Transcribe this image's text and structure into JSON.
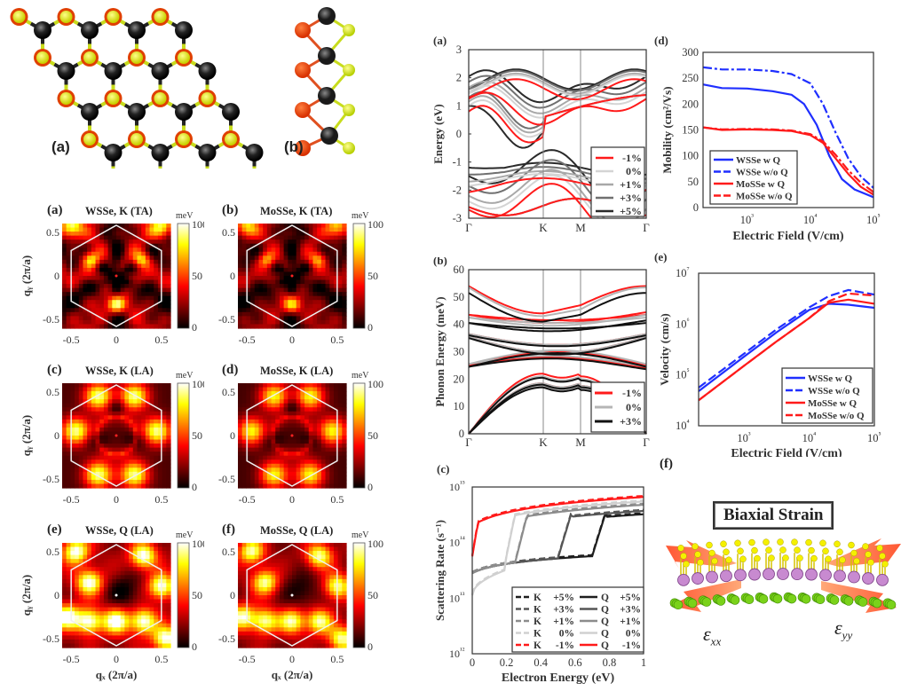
{
  "figure": {
    "left_panels": {
      "structure_a_label": "(a)",
      "structure_b_label": "(b)",
      "structure_legend": {
        "atom_types": [
          "metal (black)",
          "S (yellow)",
          "Se (orange)"
        ]
      },
      "heatmaps": [
        {
          "label": "(a)",
          "title": "WSSe, K (TA)",
          "pattern": "ta",
          "seed": 1
        },
        {
          "label": "(b)",
          "title": "MoSSe, K (TA)",
          "pattern": "ta",
          "seed": 2
        },
        {
          "label": "(c)",
          "title": "WSSe, K (LA)",
          "pattern": "la",
          "seed": 3
        },
        {
          "label": "(d)",
          "title": "MoSSe, K (LA)",
          "pattern": "la",
          "seed": 4
        },
        {
          "label": "(e)",
          "title": "WSSe, Q (LA)",
          "pattern": "q",
          "seed": 5
        },
        {
          "label": "(f)",
          "title": "MoSSe, Q (LA)",
          "pattern": "q",
          "seed": 6
        }
      ],
      "heatmap_colorbar": {
        "unit": "meV",
        "ticks": [
          "100",
          "50",
          "0"
        ],
        "range": [
          0,
          100
        ]
      },
      "heatmap_ticks": [
        "-0.5",
        "0",
        "0.5"
      ],
      "heatmap_ylabel": "q_y (2π/a)",
      "heatmap_xlabel": "q_x (2π/a)"
    },
    "right_panel_f": {
      "label": "(f)",
      "title": "Biaxial Strain",
      "strain_x": "ε",
      "strain_x_sub": "xx",
      "strain_y": "ε",
      "strain_y_sub": "yy"
    }
  },
  "chart_data": [
    {
      "id": "a",
      "label": "(a)",
      "type": "line",
      "title": "",
      "xlabel": "",
      "ylabel": "Energy (eV)",
      "ylim": [
        -3,
        3
      ],
      "yticks": [
        "3",
        "2",
        "1",
        "0",
        "-1",
        "-2",
        "-3"
      ],
      "xticks": [
        "Γ",
        "K",
        "M",
        "Γ"
      ],
      "kpath_positions": [
        0,
        0.42,
        0.63,
        1.0
      ],
      "legend": [
        "-1%",
        "0%",
        "+1%",
        "+3%",
        "+5%"
      ],
      "legend_position": "lower-right",
      "series": [
        {
          "name": "-1%",
          "color": "#ff1a1a",
          "cb_min": 0.0,
          "cb_K": 1.1,
          "cb_peak": 2.05,
          "vb_max": -1.65,
          "vb_G": -1.8
        },
        {
          "name": "0%",
          "color": "#d4d4d4",
          "cb_min": 0.2,
          "cb_K": 1.35,
          "cb_peak": 2.2,
          "vb_max": -1.5,
          "vb_G": -1.5
        },
        {
          "name": "+1%",
          "color": "#a8a8a8",
          "cb_min": 0.35,
          "cb_K": 1.5,
          "cb_peak": 2.25,
          "vb_max": -1.4,
          "vb_G": -1.3
        },
        {
          "name": "+3%",
          "color": "#707070",
          "cb_min": 0.5,
          "cb_K": 1.7,
          "cb_peak": 2.35,
          "vb_max": -1.25,
          "vb_G": -0.95
        },
        {
          "name": "+5%",
          "color": "#2a2a2a",
          "cb_min": 0.0,
          "cb_K": 1.9,
          "cb_peak": 2.4,
          "vb_max": -1.1,
          "vb_G": -0.6
        }
      ]
    },
    {
      "id": "b",
      "label": "(b)",
      "type": "line",
      "xlabel": "",
      "ylabel": "Phonon Energy (meV)",
      "ylim": [
        0,
        60
      ],
      "yticks": [
        "60",
        "50",
        "40",
        "30",
        "20",
        "10",
        "0"
      ],
      "xticks": [
        "Γ",
        "K",
        "M",
        "Γ"
      ],
      "kpath_positions": [
        0,
        0.42,
        0.63,
        1.0
      ],
      "legend": [
        "-1%",
        "0%",
        "+3%"
      ],
      "legend_position": "lower-right",
      "series": [
        {
          "name": "-1%",
          "color": "#ff1a1a",
          "top_G": 54,
          "top_K": 44,
          "top_M": 47,
          "acoustic_K": [
            17.5,
            18.5,
            22
          ],
          "optical": [
            43.5,
            35.5,
            25
          ]
        },
        {
          "name": "0%",
          "color": "#b5b5b5",
          "top_G": 53.5,
          "top_K": 43,
          "top_M": 45.5,
          "acoustic_K": [
            17.5,
            18.5,
            21
          ],
          "optical": [
            42.5,
            35.5,
            25.5
          ]
        },
        {
          "name": "+3%",
          "color": "#111111",
          "top_G": 51.5,
          "top_K": 41,
          "top_M": 43.5,
          "acoustic_K": [
            17,
            18,
            20.5
          ],
          "optical": [
            40.5,
            35,
            24.5
          ]
        }
      ]
    },
    {
      "id": "c",
      "label": "(c)",
      "type": "line",
      "xlabel": "Electron Energy (eV)",
      "ylabel": "Scattering Rate (s⁻¹)",
      "xlim": [
        0,
        1
      ],
      "ylim_log10": [
        12,
        15
      ],
      "xticks": [
        "0",
        "0.2",
        "0.4",
        "0.6",
        "0.8",
        "1"
      ],
      "yticks": [
        "10¹⁵",
        "10¹⁴",
        "10¹³",
        "10¹²"
      ],
      "legend": [
        "K +5%",
        "K +3%",
        "K +1%",
        "K 0%",
        "K -1%",
        "Q +5%",
        "Q +3%",
        "Q +1%",
        "Q 0%",
        "Q -1%"
      ],
      "legend_position": "lower-right",
      "series": [
        {
          "name": "+5%",
          "color": "#1e1e1e",
          "jump_start": 0.7,
          "jump_end": 0.78
        },
        {
          "name": "+3%",
          "color": "#555555",
          "jump_start": 0.5,
          "jump_end": 0.58
        },
        {
          "name": "+1%",
          "color": "#8c8c8c",
          "jump_start": 0.25,
          "jump_end": 0.32
        },
        {
          "name": "0%",
          "color": "#d0d0d0",
          "jump_start": 0.19,
          "jump_end": 0.25
        },
        {
          "name": "-1%",
          "color": "#ff1a1a",
          "jump_start": 0.0,
          "jump_end": 0.03
        }
      ]
    },
    {
      "id": "d",
      "label": "(d)",
      "type": "line",
      "xlabel": "Electric Field (V/cm)",
      "ylabel": "Mobility (cm²/Vs)",
      "xlim_log10": [
        2.3,
        5
      ],
      "ylim": [
        0,
        300
      ],
      "xticks": [
        "10³",
        "10⁴",
        "10⁵"
      ],
      "yticks": [
        "300",
        "250",
        "200",
        "150",
        "100",
        "50",
        "0"
      ],
      "legend": [
        "WSSe w Q",
        "WSSe w/o Q",
        "MoSSe w Q",
        "MoSSe w/o Q"
      ],
      "legend_position": "lower-left",
      "series": [
        {
          "name": "WSSe w Q",
          "color": "#1f2fff",
          "dash": false,
          "x_log10": [
            2.3,
            2.6,
            3.0,
            3.4,
            3.7,
            3.9,
            4.1,
            4.3,
            4.5,
            4.7,
            5.0
          ],
          "y": [
            238,
            231,
            230,
            225,
            218,
            200,
            160,
            100,
            55,
            35,
            20
          ]
        },
        {
          "name": "WSSe w/o Q",
          "color": "#1f2fff",
          "dash": true,
          "x_log10": [
            2.3,
            2.6,
            3.0,
            3.4,
            3.7,
            4.0,
            4.2,
            4.4,
            4.6,
            4.8,
            5.0
          ],
          "y": [
            271,
            267,
            267,
            264,
            258,
            240,
            200,
            145,
            95,
            60,
            38
          ]
        },
        {
          "name": "MoSSe w Q",
          "color": "#ff1a1a",
          "dash": false,
          "x_log10": [
            2.3,
            2.6,
            3.0,
            3.4,
            3.7,
            4.0,
            4.2,
            4.4,
            4.6,
            4.8,
            5.0
          ],
          "y": [
            155,
            150,
            151,
            150,
            148,
            140,
            125,
            95,
            65,
            40,
            25
          ]
        },
        {
          "name": "MoSSe w/o Q",
          "color": "#ff1a1a",
          "dash": true,
          "x_log10": [
            2.3,
            2.6,
            3.0,
            3.4,
            3.7,
            4.0,
            4.2,
            4.4,
            4.6,
            4.8,
            5.0
          ],
          "y": [
            155,
            151,
            152,
            151,
            149,
            142,
            128,
            102,
            72,
            48,
            30
          ]
        }
      ]
    },
    {
      "id": "e",
      "label": "(e)",
      "type": "line",
      "xlabel": "Electric Field (V/cm)",
      "ylabel": "Velocity (cm/s)",
      "xlim_log10": [
        2.3,
        5
      ],
      "ylim_log10": [
        4,
        7
      ],
      "xticks": [
        "10³",
        "10⁴",
        "10⁵"
      ],
      "yticks": [
        "10⁷",
        "10⁶",
        "10⁵",
        "10⁴"
      ],
      "legend": [
        "WSSe w Q",
        "WSSe w/o Q",
        "MoSSe w Q",
        "MoSSe w/o Q"
      ],
      "legend_position": "lower-right",
      "series": [
        {
          "name": "WSSe w Q",
          "color": "#1f2fff",
          "dash": false,
          "x_log10": [
            2.3,
            3.0,
            3.5,
            4.0,
            4.3,
            4.6,
            5.0
          ],
          "y_log10": [
            4.68,
            5.36,
            5.84,
            6.28,
            6.4,
            6.38,
            6.32
          ]
        },
        {
          "name": "WSSe w/o Q",
          "color": "#1f2fff",
          "dash": true,
          "x_log10": [
            2.3,
            3.0,
            3.5,
            4.0,
            4.3,
            4.6,
            5.0
          ],
          "y_log10": [
            4.75,
            5.42,
            5.9,
            6.33,
            6.55,
            6.67,
            6.58
          ]
        },
        {
          "name": "MoSSe w Q",
          "color": "#ff1a1a",
          "dash": false,
          "x_log10": [
            2.3,
            3.0,
            3.5,
            4.0,
            4.3,
            4.6,
            5.0
          ],
          "y_log10": [
            4.5,
            5.18,
            5.66,
            6.12,
            6.42,
            6.48,
            6.4
          ]
        },
        {
          "name": "MoSSe w/o Q",
          "color": "#ff1a1a",
          "dash": true,
          "x_log10": [
            2.3,
            3.0,
            3.5,
            4.0,
            4.3,
            4.6,
            5.0
          ],
          "y_log10": [
            4.5,
            5.18,
            5.66,
            6.12,
            6.45,
            6.6,
            6.56
          ]
        }
      ]
    }
  ]
}
